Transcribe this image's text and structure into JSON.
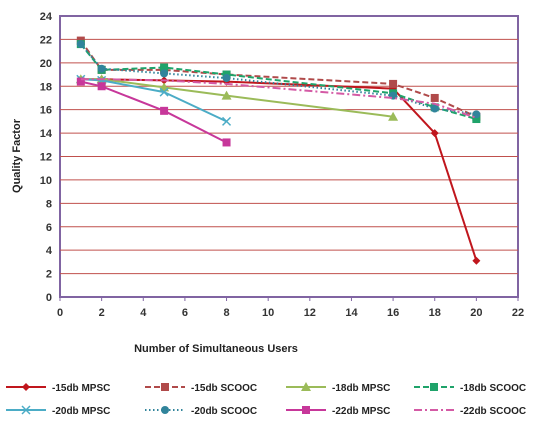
{
  "chart_data": {
    "type": "line",
    "title": "",
    "xlabel": "Number of Simultaneous Users",
    "ylabel": "Quality Factor",
    "xlim": [
      0,
      22
    ],
    "ylim": [
      0,
      24
    ],
    "x_ticks": [
      0,
      2,
      4,
      6,
      8,
      10,
      12,
      14,
      16,
      18,
      20,
      22
    ],
    "y_ticks": [
      0,
      2,
      4,
      6,
      8,
      10,
      12,
      14,
      16,
      18,
      20,
      22,
      24
    ],
    "grid": "horizontal",
    "legend_position": "bottom",
    "series": [
      {
        "name": "-15db MPSC",
        "color": "#c0161d",
        "dash": "solid",
        "marker": "diamond",
        "x": [
          1,
          2,
          5,
          8,
          16,
          18,
          20
        ],
        "y": [
          18.6,
          18.6,
          18.5,
          18.4,
          17.8,
          14.0,
          3.1
        ]
      },
      {
        "name": "-15db SCOOC",
        "color": "#b04a4a",
        "dash": "dash",
        "marker": "square",
        "x": [
          1,
          2,
          5,
          8,
          16,
          18,
          20
        ],
        "y": [
          21.9,
          19.4,
          19.4,
          19.0,
          18.2,
          17.0,
          15.4
        ]
      },
      {
        "name": "-18db MPSC",
        "color": "#9bbb59",
        "dash": "solid",
        "marker": "triangle",
        "x": [
          1,
          2,
          5,
          8,
          16
        ],
        "y": [
          18.6,
          18.6,
          17.9,
          17.2,
          15.4
        ]
      },
      {
        "name": "-18db SCOOC",
        "color": "#1fa36a",
        "dash": "dash",
        "marker": "square",
        "x": [
          1,
          2,
          5,
          8,
          16,
          18,
          20
        ],
        "y": [
          21.6,
          19.4,
          19.6,
          19.0,
          17.4,
          16.2,
          15.2
        ]
      },
      {
        "name": "-20db MPSC",
        "color": "#4bacc6",
        "dash": "solid",
        "marker": "x",
        "x": [
          1,
          2,
          5,
          8
        ],
        "y": [
          18.6,
          18.5,
          17.5,
          15.0
        ]
      },
      {
        "name": "-20db SCOOC",
        "color": "#31849b",
        "dash": "dot",
        "marker": "circle",
        "x": [
          1,
          2,
          5,
          8,
          16,
          18,
          20
        ],
        "y": [
          21.6,
          19.5,
          19.1,
          18.7,
          17.2,
          16.1,
          15.6
        ]
      },
      {
        "name": "-22db MPSC",
        "color": "#c7379a",
        "dash": "solid",
        "marker": "square",
        "x": [
          1,
          2,
          5,
          8
        ],
        "y": [
          18.4,
          18.0,
          15.9,
          13.2
        ]
      },
      {
        "name": "-22db SCOOC",
        "color": "#d45aa5",
        "dash": "dashdot",
        "marker": "none",
        "x": [
          1,
          2,
          5,
          8,
          16,
          18,
          20
        ],
        "y": [
          18.6,
          18.6,
          18.5,
          18.2,
          17.0,
          16.5,
          15.3
        ]
      }
    ]
  }
}
